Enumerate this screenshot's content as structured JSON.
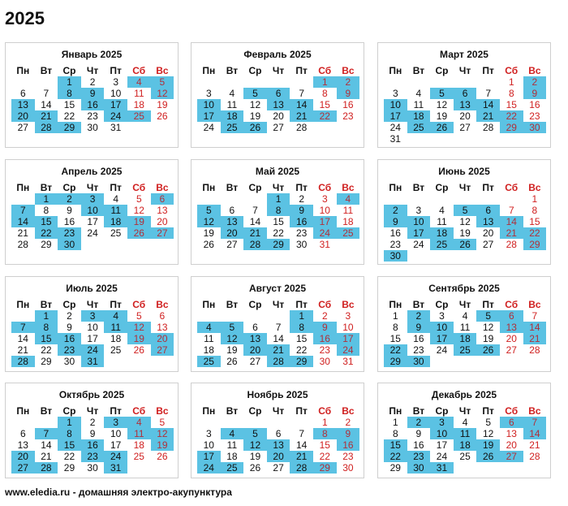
{
  "year_title": "2025",
  "weekdays": [
    "Пн",
    "Вт",
    "Ср",
    "Чт",
    "Пт",
    "Сб",
    "Вс"
  ],
  "highlight_color": "#5bc2e3",
  "weekend_color": "#d02020",
  "months": [
    {
      "name": "Январь 2025",
      "first_weekday": 2,
      "days": 31,
      "highlighted": [
        1,
        4,
        5,
        8,
        9,
        12,
        13,
        16,
        17,
        20,
        21,
        24,
        25,
        28,
        29
      ]
    },
    {
      "name": "Февраль 2025",
      "first_weekday": 5,
      "days": 28,
      "highlighted": [
        1,
        2,
        5,
        6,
        9,
        10,
        13,
        14,
        17,
        18,
        21,
        22,
        25,
        26
      ]
    },
    {
      "name": "Март 2025",
      "first_weekday": 5,
      "days": 31,
      "highlighted": [
        2,
        5,
        6,
        9,
        10,
        13,
        14,
        17,
        18,
        21,
        22,
        25,
        26,
        29,
        30
      ]
    },
    {
      "name": "Апрель 2025",
      "first_weekday": 1,
      "days": 30,
      "highlighted": [
        1,
        2,
        3,
        6,
        7,
        10,
        11,
        14,
        15,
        18,
        19,
        22,
        23,
        26,
        27,
        30
      ]
    },
    {
      "name": "Май 2025",
      "first_weekday": 3,
      "days": 31,
      "highlighted": [
        1,
        4,
        5,
        8,
        9,
        12,
        13,
        16,
        17,
        20,
        21,
        24,
        25,
        28,
        29
      ]
    },
    {
      "name": "Июнь 2025",
      "first_weekday": 6,
      "days": 30,
      "highlighted": [
        2,
        5,
        6,
        9,
        10,
        13,
        14,
        17,
        18,
        21,
        22,
        25,
        26,
        29,
        30
      ]
    },
    {
      "name": "Июль 2025",
      "first_weekday": 1,
      "days": 31,
      "highlighted": [
        1,
        3,
        4,
        7,
        8,
        11,
        12,
        15,
        16,
        19,
        20,
        23,
        24,
        27,
        28,
        31
      ]
    },
    {
      "name": "Август 2025",
      "first_weekday": 4,
      "days": 31,
      "highlighted": [
        1,
        4,
        5,
        8,
        9,
        12,
        13,
        16,
        17,
        20,
        21,
        24,
        25,
        28,
        29
      ]
    },
    {
      "name": "Сентябрь 2025",
      "first_weekday": 0,
      "days": 30,
      "highlighted": [
        2,
        5,
        6,
        9,
        10,
        13,
        14,
        17,
        18,
        21,
        22,
        25,
        26,
        29,
        30
      ]
    },
    {
      "name": "Октябрь 2025",
      "first_weekday": 2,
      "days": 31,
      "highlighted": [
        1,
        3,
        4,
        7,
        8,
        11,
        12,
        15,
        16,
        19,
        20,
        23,
        24,
        27,
        28,
        31
      ]
    },
    {
      "name": "Ноябрь 2025",
      "first_weekday": 5,
      "days": 30,
      "highlighted": [
        4,
        5,
        8,
        9,
        12,
        13,
        16,
        17,
        20,
        21,
        24,
        25,
        28,
        29
      ]
    },
    {
      "name": "Декабрь 2025",
      "first_weekday": 0,
      "days": 31,
      "highlighted": [
        2,
        3,
        6,
        7,
        10,
        11,
        14,
        15,
        18,
        19,
        22,
        23,
        26,
        27,
        30,
        31
      ]
    }
  ],
  "footer": "www.eledia.ru - домашняя электро-акупунктура"
}
